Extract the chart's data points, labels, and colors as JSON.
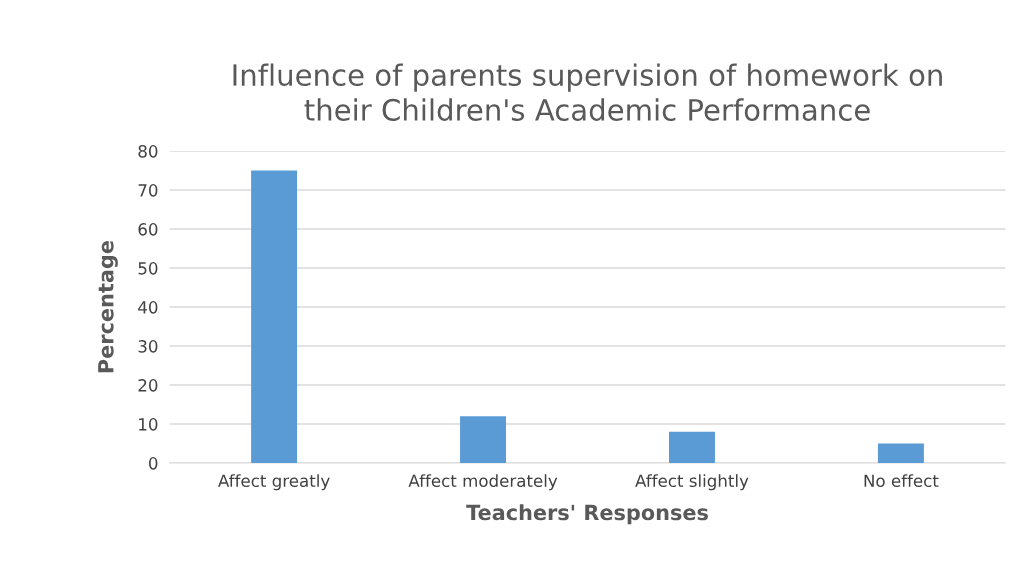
{
  "chart_data": {
    "type": "bar",
    "title": "Influence of parents supervision of homework on\ntheir Children's Academic Performance",
    "xlabel": "Teachers' Responses",
    "ylabel": "Percentage",
    "categories": [
      "Affect greatly",
      "Affect moderately",
      "Affect slightly",
      "No effect"
    ],
    "values": [
      75,
      12,
      8,
      5
    ],
    "color": "#5b9bd5",
    "ylim": [
      0,
      80
    ],
    "yticks": [
      0,
      10,
      20,
      30,
      40,
      50,
      60,
      70,
      80
    ],
    "grid": "y",
    "legend": false
  }
}
